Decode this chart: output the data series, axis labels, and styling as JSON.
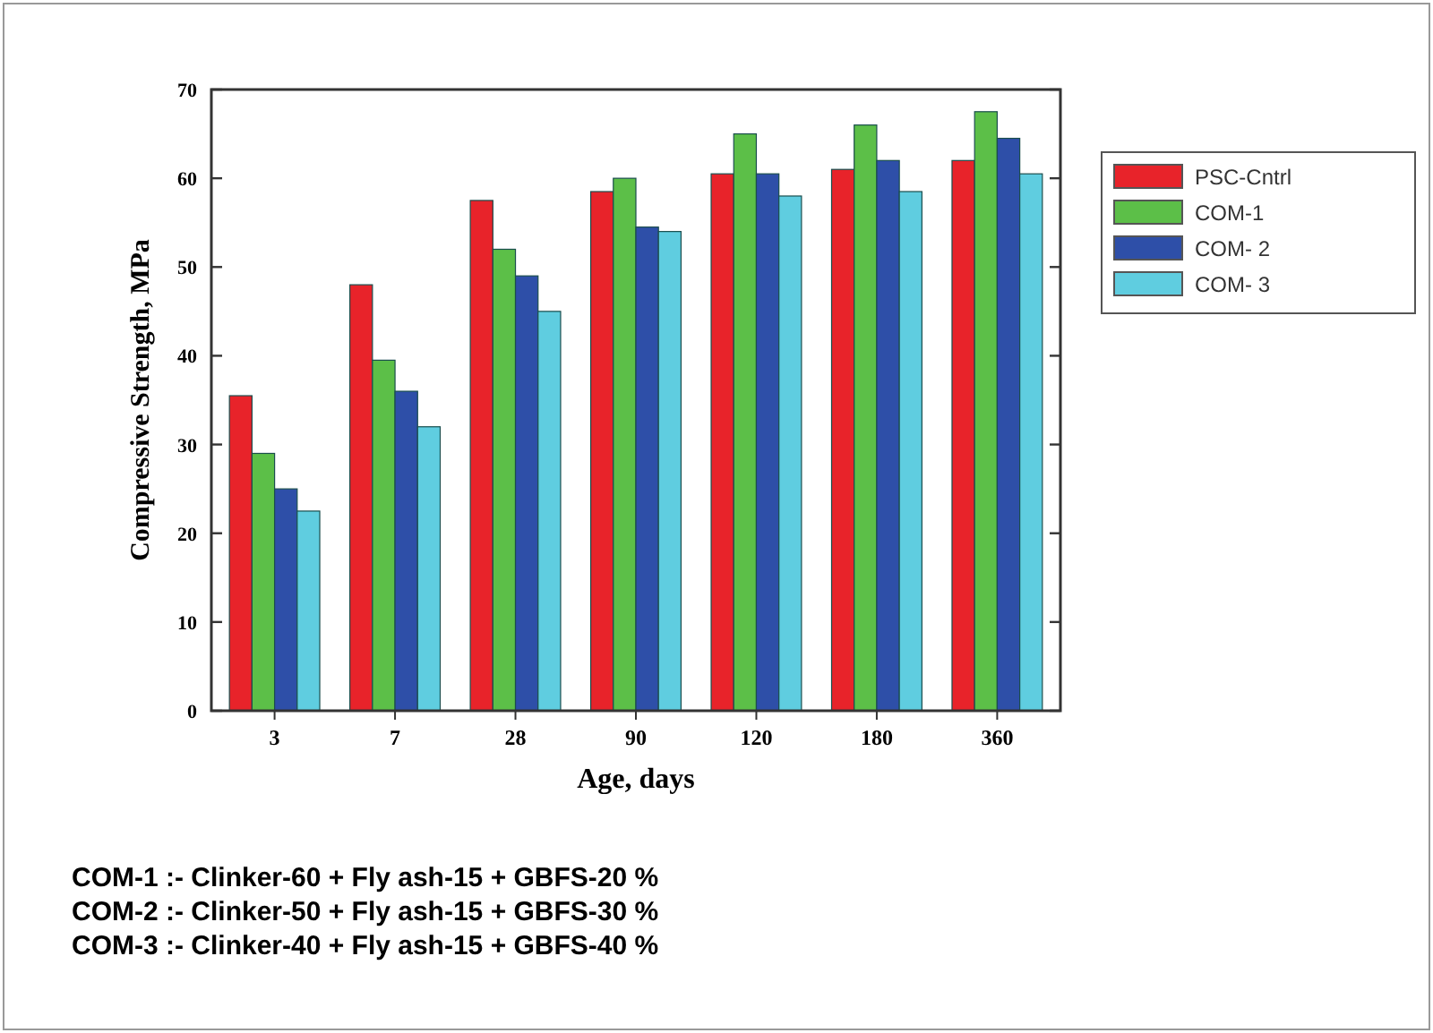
{
  "chart_data": {
    "type": "bar",
    "xlabel": "Age, days",
    "ylabel": "Compressive Strength, MPa",
    "categories": [
      "3",
      "7",
      "28",
      "90",
      "120",
      "180",
      "360"
    ],
    "series": [
      {
        "name": "PSC-Cntrl",
        "color": "#e8232a",
        "values": [
          35.5,
          48,
          57.5,
          58.5,
          60.5,
          61,
          62
        ]
      },
      {
        "name": "COM-1",
        "color": "#5cbf48",
        "values": [
          29,
          39.5,
          52,
          60,
          65,
          66,
          67.5
        ]
      },
      {
        "name": "COM- 2",
        "color": "#2e4fa8",
        "values": [
          25,
          36,
          49,
          54.5,
          60.5,
          62,
          64.5
        ]
      },
      {
        "name": "COM- 3",
        "color": "#5fcde0",
        "values": [
          22.5,
          32,
          45,
          54,
          58,
          58.5,
          60.5
        ]
      }
    ],
    "ylim": [
      0,
      70
    ],
    "yticks": [
      0,
      10,
      20,
      30,
      40,
      50,
      60,
      70
    ],
    "grid": false,
    "legend": "top right",
    "annotations": [
      "COM-1 :- Clinker-60 + Fly ash-15 + GBFS-20 %",
      "COM-2  :- Clinker-50 + Fly ash-15 + GBFS-30 %",
      "COM-3  :- Clinker-40 + Fly ash-15 + GBFS-40 %"
    ]
  }
}
